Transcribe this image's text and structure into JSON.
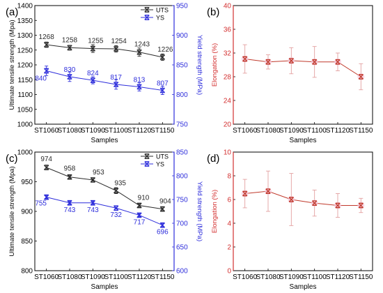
{
  "colors": {
    "uts": "#2b2b2b",
    "ys": "#2d2ddb",
    "elong": "#c0392b",
    "elong_err": "#e3a0a0",
    "elong_glow": "#f6c9dd",
    "elong_axis": "#d32f2f",
    "ys_axis": "#2d2ddb"
  },
  "chart_data": [
    {
      "panel": "a",
      "type": "line",
      "panel_label": "(a)",
      "categories": [
        "ST1060",
        "ST1080",
        "ST1090",
        "ST1100",
        "ST1120",
        "ST1150"
      ],
      "xlabel": "Samples",
      "ylabel_left": "Ultimate tensile strength (Mpa)",
      "ylabel_right": "Yield strength (MPa)",
      "ylim_left": [
        1000,
        1400
      ],
      "yticks_left": [
        1000,
        1050,
        1100,
        1150,
        1200,
        1250,
        1300,
        1350,
        1400
      ],
      "ylim_right": [
        750,
        950
      ],
      "yticks_right": [
        750,
        800,
        850,
        900,
        950
      ],
      "legend_position": "top-right",
      "series": [
        {
          "name": "UTS",
          "axis": "left",
          "marker": "x",
          "values": [
            1268,
            1258,
            1255,
            1254,
            1243,
            1226
          ],
          "errors": [
            9,
            8,
            13,
            11,
            14,
            11
          ],
          "labels": [
            "1268",
            "1258",
            "1255",
            "1254",
            "1243",
            "1226"
          ]
        },
        {
          "name": "YS",
          "axis": "right",
          "marker": "x",
          "values": [
            840,
            830,
            824,
            817,
            813,
            807
          ],
          "errors": [
            8,
            8,
            6,
            8,
            7,
            7
          ],
          "labels": [
            "840",
            "830",
            "824",
            "817",
            "813",
            "807"
          ]
        }
      ]
    },
    {
      "panel": "b",
      "type": "line",
      "panel_label": "(b)",
      "categories": [
        "ST1060",
        "ST1080",
        "ST1090",
        "ST1100",
        "ST1120",
        "ST1150"
      ],
      "xlabel": "Samples",
      "ylabel": "Elongation (%)",
      "ylim": [
        20,
        40
      ],
      "yticks": [
        20,
        24,
        28,
        32,
        36,
        40
      ],
      "series": [
        {
          "name": "Elongation",
          "marker": "x",
          "values": [
            31.0,
            30.5,
            30.7,
            30.5,
            30.5,
            28.0
          ],
          "errors": [
            2.4,
            1.2,
            2.2,
            2.6,
            1.5,
            2.2
          ]
        }
      ]
    },
    {
      "panel": "c",
      "type": "line",
      "panel_label": "(c)",
      "categories": [
        "ST1060",
        "ST1080",
        "ST1090",
        "ST1100",
        "ST1120",
        "ST1150"
      ],
      "xlabel": "Samples",
      "ylabel_left": "Ultimate tensile strength (Mpa)",
      "ylabel_right": "Yield strength (MPa)",
      "ylim_left": [
        800,
        1000
      ],
      "yticks_left": [
        800,
        850,
        900,
        950,
        1000
      ],
      "ylim_right": [
        600,
        850
      ],
      "yticks_right": [
        600,
        650,
        700,
        750,
        800,
        850
      ],
      "legend_position": "top-right",
      "series": [
        {
          "name": "UTS",
          "axis": "left",
          "marker": "x",
          "values": [
            974,
            958,
            953,
            935,
            910,
            904
          ],
          "errors": [
            4,
            3,
            2,
            5,
            3,
            2
          ],
          "labels": [
            "974",
            "958",
            "953",
            "935",
            "910",
            "904"
          ]
        },
        {
          "name": "YS",
          "axis": "right",
          "marker": "x",
          "values": [
            755,
            743,
            743,
            732,
            717,
            696
          ],
          "errors": [
            3,
            3,
            3,
            2,
            3,
            3
          ],
          "labels": [
            "755",
            "743",
            "743",
            "732",
            "717",
            "696"
          ]
        }
      ]
    },
    {
      "panel": "d",
      "type": "line",
      "panel_label": "(d)",
      "categories": [
        "ST1060",
        "ST1080",
        "ST1090",
        "ST1100",
        "ST1120",
        "ST1150"
      ],
      "xlabel": "Samples",
      "ylabel": "Elongation (%)",
      "ylim": [
        0,
        10
      ],
      "yticks": [
        0,
        2,
        4,
        6,
        8,
        10
      ],
      "series": [
        {
          "name": "Elongation",
          "marker": "x",
          "values": [
            6.5,
            6.7,
            6.0,
            5.7,
            5.5,
            5.5
          ],
          "errors": [
            1.2,
            1.7,
            2.2,
            1.1,
            1.0,
            0.6
          ]
        }
      ]
    }
  ]
}
